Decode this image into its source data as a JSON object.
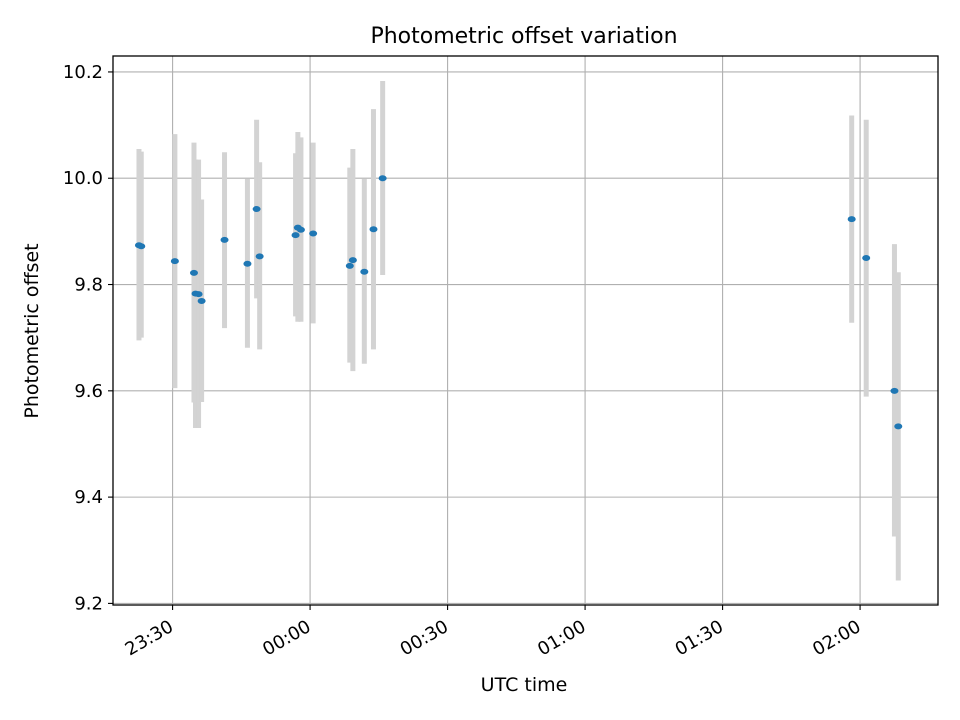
{
  "chart_data": {
    "type": "scatter",
    "title": "Photometric offset variation",
    "xlabel": "UTC time",
    "ylabel": "Photometric offset",
    "x_is_time": true,
    "xlim": [
      "23:17",
      "02:17"
    ],
    "ylim": [
      9.197,
      10.23
    ],
    "grid": true,
    "colors": {
      "point": "#1f77b4",
      "errorbar": "#d3d3d3",
      "grid": "#b0b0b0",
      "axes": "#000000"
    },
    "x_ticks": [
      {
        "t": "23:30",
        "label": "23:30"
      },
      {
        "t": "00:00",
        "label": "00:00"
      },
      {
        "t": "00:30",
        "label": "00:30"
      },
      {
        "t": "01:00",
        "label": "01:00"
      },
      {
        "t": "01:30",
        "label": "01:30"
      },
      {
        "t": "02:00",
        "label": "02:00"
      }
    ],
    "y_ticks": [
      {
        "v": 9.2,
        "label": "9.2"
      },
      {
        "v": 9.4,
        "label": "9.4"
      },
      {
        "v": 9.6,
        "label": "9.6"
      },
      {
        "v": 9.8,
        "label": "9.8"
      },
      {
        "v": 10.0,
        "label": "10.0"
      },
      {
        "v": 10.2,
        "label": "10.2"
      }
    ],
    "points": [
      {
        "x": "23:22:40",
        "y": 9.874,
        "yerr_low": 9.695,
        "yerr_high": 10.055
      },
      {
        "x": "23:23:10",
        "y": 9.872,
        "yerr_low": 9.7,
        "yerr_high": 10.05
      },
      {
        "x": "23:30:30",
        "y": 9.844,
        "yerr_low": 9.605,
        "yerr_high": 10.083
      },
      {
        "x": "23:34:40",
        "y": 9.822,
        "yerr_low": 9.578,
        "yerr_high": 10.067
      },
      {
        "x": "23:35:00",
        "y": 9.783,
        "yerr_low": 9.53,
        "yerr_high": 10.035
      },
      {
        "x": "23:35:40",
        "y": 9.782,
        "yerr_low": 9.53,
        "yerr_high": 10.035
      },
      {
        "x": "23:36:20",
        "y": 9.769,
        "yerr_low": 9.579,
        "yerr_high": 9.96
      },
      {
        "x": "23:41:20",
        "y": 9.884,
        "yerr_low": 9.718,
        "yerr_high": 10.049
      },
      {
        "x": "23:46:20",
        "y": 9.839,
        "yerr_low": 9.681,
        "yerr_high": 9.999
      },
      {
        "x": "23:48:20",
        "y": 9.942,
        "yerr_low": 9.774,
        "yerr_high": 10.11
      },
      {
        "x": "23:49:00",
        "y": 9.853,
        "yerr_low": 9.678,
        "yerr_high": 10.03
      },
      {
        "x": "23:56:50",
        "y": 9.893,
        "yerr_low": 9.74,
        "yerr_high": 10.047
      },
      {
        "x": "23:57:20",
        "y": 9.907,
        "yerr_low": 9.73,
        "yerr_high": 10.087
      },
      {
        "x": "23:58:00",
        "y": 9.903,
        "yerr_low": 9.73,
        "yerr_high": 10.077
      },
      {
        "x": "00:00:40",
        "y": 9.896,
        "yerr_low": 9.727,
        "yerr_high": 10.067
      },
      {
        "x": "00:08:40",
        "y": 9.835,
        "yerr_low": 9.653,
        "yerr_high": 10.02
      },
      {
        "x": "00:09:20",
        "y": 9.846,
        "yerr_low": 9.637,
        "yerr_high": 10.055
      },
      {
        "x": "00:11:50",
        "y": 9.824,
        "yerr_low": 9.651,
        "yerr_high": 9.999
      },
      {
        "x": "00:13:50",
        "y": 9.904,
        "yerr_low": 9.678,
        "yerr_high": 10.13
      },
      {
        "x": "00:15:50",
        "y": 10.0,
        "yerr_low": 9.818,
        "yerr_high": 10.183
      },
      {
        "x": "01:58:10",
        "y": 9.923,
        "yerr_low": 9.728,
        "yerr_high": 10.118
      },
      {
        "x": "02:01:20",
        "y": 9.85,
        "yerr_low": 9.589,
        "yerr_high": 10.11
      },
      {
        "x": "02:07:30",
        "y": 9.6,
        "yerr_low": 9.326,
        "yerr_high": 9.876
      },
      {
        "x": "02:08:20",
        "y": 9.533,
        "yerr_low": 9.243,
        "yerr_high": 9.823
      }
    ]
  }
}
